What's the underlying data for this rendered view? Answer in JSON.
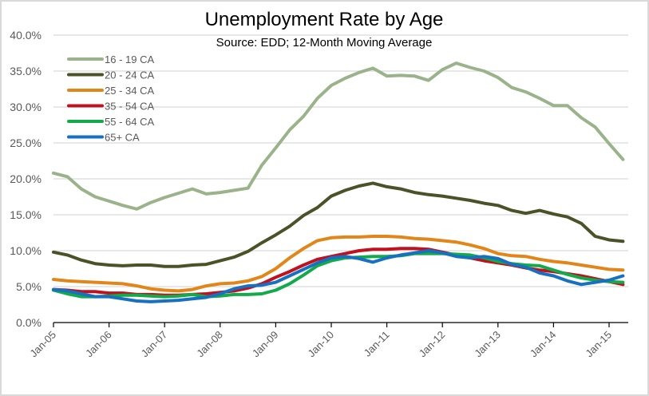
{
  "chart_data": {
    "type": "line",
    "title": "Unemployment Rate by Age",
    "subtitle": "Source:  EDD; 12-Month Moving Average",
    "xlabel": "",
    "ylabel": "",
    "ylim": [
      0,
      40
    ],
    "y_ticks": [
      "0.0%",
      "5.0%",
      "10.0%",
      "15.0%",
      "20.0%",
      "25.0%",
      "30.0%",
      "35.0%",
      "40.0%"
    ],
    "x_ticks": [
      "Jan-05",
      "Jan-06",
      "Jan-07",
      "Jan-08",
      "Jan-09",
      "Jan-10",
      "Jan-11",
      "Jan-12",
      "Jan-13",
      "Jan-14",
      "Jan-15"
    ],
    "grid": true,
    "legend_position": "top-left",
    "x_start_year": 2005,
    "x_step_years": 0.25,
    "x_end_year": 2015.25,
    "series": [
      {
        "name": "16 - 19 CA",
        "color": "#9bb38b",
        "values": [
          20.8,
          20.3,
          18.6,
          17.5,
          16.9,
          16.3,
          15.8,
          16.7,
          17.4,
          18.0,
          18.6,
          17.9,
          18.1,
          18.4,
          18.7,
          21.9,
          24.3,
          26.8,
          28.7,
          31.2,
          33.0,
          34.0,
          34.8,
          35.4,
          34.3,
          34.4,
          34.3,
          33.7,
          35.2,
          36.1,
          35.5,
          35.0,
          34.1,
          32.7,
          32.1,
          31.2,
          30.2,
          30.2,
          28.5,
          27.2,
          24.9,
          22.7
        ]
      },
      {
        "name": "20 - 24 CA",
        "color": "#4a5228",
        "values": [
          9.8,
          9.4,
          8.7,
          8.2,
          8.0,
          7.9,
          8.0,
          8.0,
          7.8,
          7.8,
          8.0,
          8.1,
          8.6,
          9.1,
          9.9,
          11.1,
          12.2,
          13.4,
          14.9,
          16.0,
          17.6,
          18.4,
          19.0,
          19.4,
          18.9,
          18.6,
          18.1,
          17.8,
          17.6,
          17.3,
          17.0,
          16.6,
          16.3,
          15.6,
          15.2,
          15.6,
          15.1,
          14.7,
          13.8,
          12.0,
          11.5,
          11.3
        ]
      },
      {
        "name": "25 - 34 CA",
        "color": "#e2861a",
        "values": [
          6.0,
          5.8,
          5.7,
          5.6,
          5.5,
          5.4,
          5.1,
          4.7,
          4.5,
          4.4,
          4.6,
          5.1,
          5.4,
          5.5,
          5.8,
          6.4,
          7.5,
          9.0,
          10.3,
          11.4,
          11.8,
          11.9,
          11.9,
          12.0,
          12.0,
          11.9,
          11.7,
          11.6,
          11.4,
          11.2,
          10.8,
          10.3,
          9.6,
          9.3,
          9.2,
          8.8,
          8.5,
          8.3,
          8.0,
          7.7,
          7.4,
          7.3
        ]
      },
      {
        "name": "35 - 54 CA",
        "color": "#c0111f",
        "values": [
          4.6,
          4.5,
          4.3,
          4.3,
          4.1,
          4.1,
          3.9,
          3.9,
          3.8,
          3.8,
          3.9,
          4.0,
          4.2,
          4.4,
          4.8,
          5.4,
          6.3,
          7.1,
          8.0,
          8.8,
          9.2,
          9.6,
          10.0,
          10.2,
          10.2,
          10.3,
          10.3,
          10.2,
          9.8,
          9.4,
          9.0,
          8.6,
          8.3,
          8.0,
          7.6,
          7.3,
          7.1,
          6.8,
          6.5,
          6.1,
          5.7,
          5.3
        ]
      },
      {
        "name": "55 - 64 CA",
        "color": "#12aa4b",
        "values": [
          4.5,
          4.0,
          3.6,
          3.6,
          3.7,
          3.8,
          3.8,
          3.7,
          3.6,
          3.7,
          3.9,
          3.6,
          3.7,
          3.9,
          3.9,
          4.0,
          4.5,
          5.4,
          6.6,
          7.9,
          8.6,
          9.0,
          9.1,
          9.2,
          9.2,
          9.3,
          9.6,
          9.6,
          9.6,
          9.5,
          9.4,
          9.0,
          8.5,
          8.2,
          8.0,
          7.9,
          7.3,
          6.7,
          6.2,
          5.9,
          5.7,
          5.6
        ]
      },
      {
        "name": "65+ CA",
        "color": "#1771c0",
        "values": [
          4.6,
          4.4,
          4.0,
          3.6,
          3.6,
          3.3,
          3.0,
          2.9,
          3.0,
          3.1,
          3.3,
          3.5,
          4.0,
          4.7,
          5.1,
          5.2,
          5.6,
          6.5,
          7.4,
          8.3,
          9.0,
          9.2,
          8.9,
          8.4,
          9.0,
          9.4,
          9.7,
          10.0,
          9.7,
          9.2,
          9.0,
          9.2,
          8.9,
          8.1,
          7.7,
          6.9,
          6.5,
          5.8,
          5.3,
          5.6,
          5.9,
          6.5
        ]
      }
    ]
  }
}
